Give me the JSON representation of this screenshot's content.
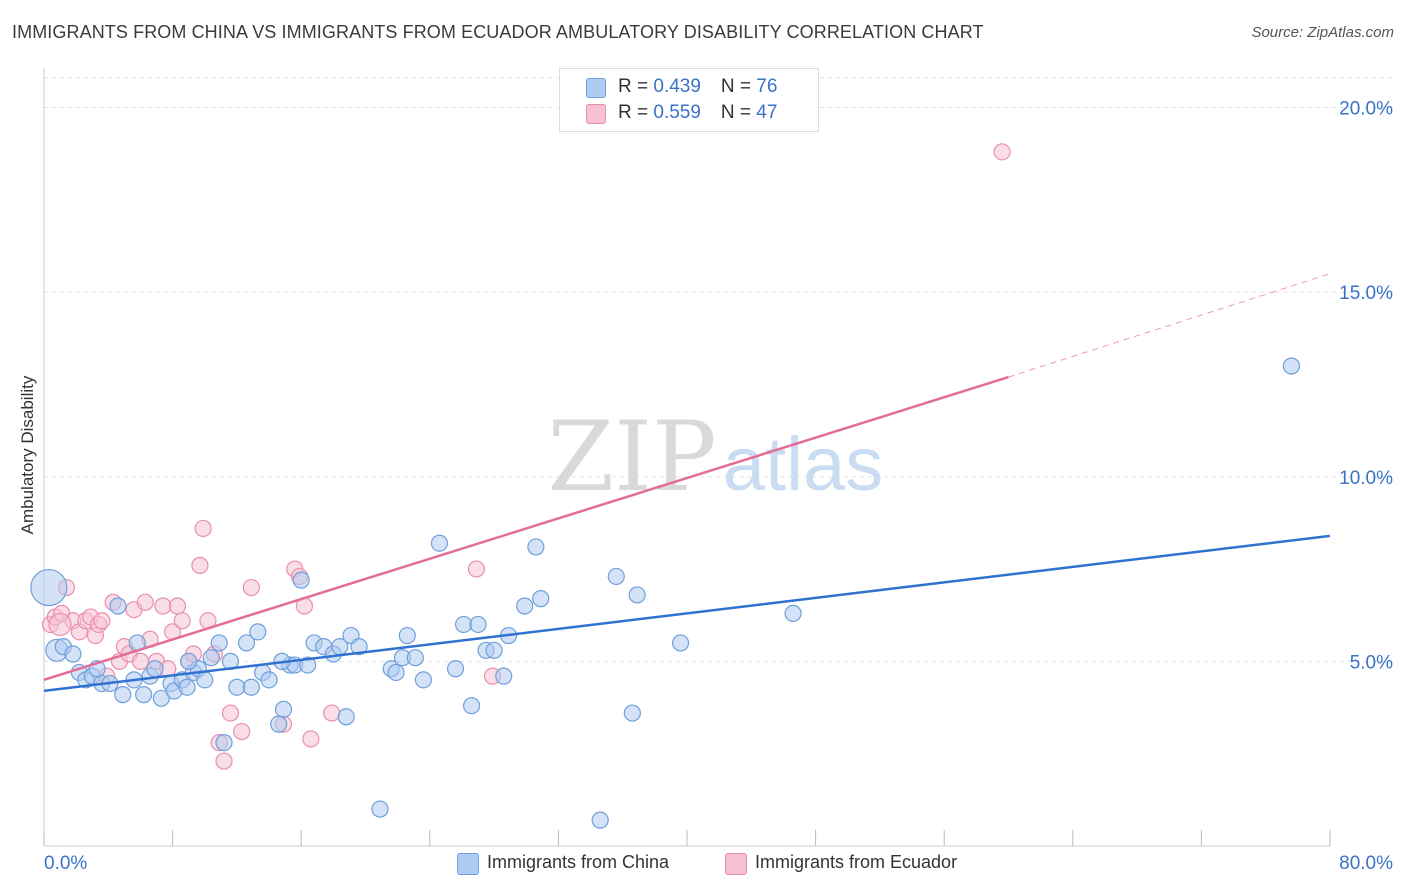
{
  "title": "IMMIGRANTS FROM CHINA VS IMMIGRANTS FROM ECUADOR AMBULATORY DISABILITY CORRELATION CHART",
  "source": "Source: ZipAtlas.com",
  "watermark": {
    "zip": "ZIP",
    "atlas": "atlas"
  },
  "legend_top": [
    {
      "r_label": "R = ",
      "r_value": "0.439",
      "n_label": "N = ",
      "n_value": "76"
    },
    {
      "r_label": "R = ",
      "r_value": "0.559",
      "n_label": "N = ",
      "n_value": "47"
    }
  ],
  "legend_bottom": [
    "Immigrants from China",
    "Immigrants from Ecuador"
  ],
  "colors": {
    "china_fill": "#aecbf1",
    "china_stroke": "#6f9fdb",
    "china_line": "#2f72cf",
    "ecuador_fill": "#f6c2d3",
    "ecuador_stroke": "#e98fae",
    "ecuador_line": "#e26d97",
    "grid": "#e2e2e2",
    "axis_text": "#3a72c8"
  },
  "chart_data": {
    "type": "scatter",
    "title": "IMMIGRANTS FROM CHINA VS IMMIGRANTS FROM ECUADOR AMBULATORY DISABILITY CORRELATION CHART",
    "xlabel": "",
    "ylabel": "Ambulatory Disability",
    "xlim": [
      0,
      80
    ],
    "ylim": [
      0,
      20.8
    ],
    "x_tick_labels": [
      "0.0%",
      "80.0%"
    ],
    "y_ticks": [
      5,
      10,
      15,
      20
    ],
    "y_tick_labels": [
      "5.0%",
      "10.0%",
      "15.0%",
      "20.0%"
    ],
    "grid": true,
    "series": [
      {
        "name": "Immigrants from China",
        "R": 0.439,
        "N": 76,
        "trend": {
          "x0": 0,
          "y0": 4.2,
          "x1": 80,
          "y1": 8.4
        },
        "points": [
          [
            0.3,
            7.0
          ],
          [
            0.8,
            5.3
          ],
          [
            1.2,
            5.4
          ],
          [
            1.8,
            5.2
          ],
          [
            2.2,
            4.7
          ],
          [
            2.6,
            4.5
          ],
          [
            3.0,
            4.6
          ],
          [
            3.3,
            4.8
          ],
          [
            3.6,
            4.4
          ],
          [
            4.1,
            4.4
          ],
          [
            4.6,
            6.5
          ],
          [
            4.9,
            4.1
          ],
          [
            5.6,
            4.5
          ],
          [
            5.8,
            5.5
          ],
          [
            6.2,
            4.1
          ],
          [
            6.6,
            4.6
          ],
          [
            6.9,
            4.8
          ],
          [
            7.3,
            4.0
          ],
          [
            7.9,
            4.4
          ],
          [
            8.1,
            4.2
          ],
          [
            8.6,
            4.5
          ],
          [
            8.9,
            4.3
          ],
          [
            9.3,
            4.7
          ],
          [
            9.6,
            4.8
          ],
          [
            10.0,
            4.5
          ],
          [
            10.4,
            5.1
          ],
          [
            10.9,
            5.5
          ],
          [
            11.2,
            2.8
          ],
          [
            11.6,
            5.0
          ],
          [
            12.0,
            4.3
          ],
          [
            12.6,
            5.5
          ],
          [
            12.9,
            4.3
          ],
          [
            13.3,
            5.8
          ],
          [
            13.6,
            4.7
          ],
          [
            14.0,
            4.5
          ],
          [
            14.6,
            3.3
          ],
          [
            14.9,
            3.7
          ],
          [
            15.3,
            4.9
          ],
          [
            15.6,
            4.9
          ],
          [
            16.0,
            7.2
          ],
          [
            16.4,
            4.9
          ],
          [
            16.8,
            5.5
          ],
          [
            17.4,
            5.4
          ],
          [
            18.0,
            5.2
          ],
          [
            18.4,
            5.4
          ],
          [
            18.8,
            3.5
          ],
          [
            19.1,
            5.7
          ],
          [
            19.6,
            5.4
          ],
          [
            20.9,
            1.0
          ],
          [
            21.6,
            4.8
          ],
          [
            21.9,
            4.7
          ],
          [
            22.3,
            5.1
          ],
          [
            22.6,
            5.7
          ],
          [
            23.1,
            5.1
          ],
          [
            23.6,
            4.5
          ],
          [
            24.6,
            8.2
          ],
          [
            25.6,
            4.8
          ],
          [
            26.1,
            6.0
          ],
          [
            26.6,
            3.8
          ],
          [
            27.0,
            6.0
          ],
          [
            27.5,
            5.3
          ],
          [
            28.0,
            5.3
          ],
          [
            28.6,
            4.6
          ],
          [
            28.9,
            5.7
          ],
          [
            29.9,
            6.5
          ],
          [
            30.6,
            8.1
          ],
          [
            30.9,
            6.7
          ],
          [
            34.6,
            0.7
          ],
          [
            35.6,
            7.3
          ],
          [
            36.6,
            3.6
          ],
          [
            36.9,
            6.8
          ],
          [
            39.6,
            5.5
          ],
          [
            46.6,
            6.3
          ],
          [
            77.6,
            13.0
          ],
          [
            9.0,
            5.0
          ],
          [
            14.8,
            5.0
          ]
        ]
      },
      {
        "name": "Immigrants from Ecuador",
        "R": 0.559,
        "N": 47,
        "trend": {
          "x0": 0,
          "y0": 4.5,
          "x1": 60,
          "y1": 12.7,
          "dashed_to": {
            "x": 80,
            "y": 15.5
          }
        },
        "points": [
          [
            0.4,
            6.0
          ],
          [
            0.7,
            6.2
          ],
          [
            1.1,
            6.3
          ],
          [
            1.4,
            7.0
          ],
          [
            1.8,
            6.1
          ],
          [
            2.2,
            5.8
          ],
          [
            2.6,
            6.1
          ],
          [
            2.9,
            6.2
          ],
          [
            3.2,
            5.7
          ],
          [
            3.4,
            6.0
          ],
          [
            3.6,
            6.1
          ],
          [
            3.9,
            4.6
          ],
          [
            4.3,
            6.6
          ],
          [
            4.7,
            5.0
          ],
          [
            5.0,
            5.4
          ],
          [
            5.3,
            5.2
          ],
          [
            5.6,
            6.4
          ],
          [
            6.0,
            5.0
          ],
          [
            6.3,
            6.6
          ],
          [
            6.6,
            5.6
          ],
          [
            7.0,
            5.0
          ],
          [
            7.4,
            6.5
          ],
          [
            7.7,
            4.8
          ],
          [
            8.0,
            5.8
          ],
          [
            8.3,
            6.5
          ],
          [
            8.6,
            6.1
          ],
          [
            9.0,
            5.0
          ],
          [
            9.3,
            5.2
          ],
          [
            9.7,
            7.6
          ],
          [
            9.9,
            8.6
          ],
          [
            10.2,
            6.1
          ],
          [
            10.6,
            5.2
          ],
          [
            10.9,
            2.8
          ],
          [
            11.2,
            2.3
          ],
          [
            11.6,
            3.6
          ],
          [
            12.3,
            3.1
          ],
          [
            12.9,
            7.0
          ],
          [
            14.9,
            3.3
          ],
          [
            15.6,
            7.5
          ],
          [
            15.9,
            7.3
          ],
          [
            16.2,
            6.5
          ],
          [
            16.6,
            2.9
          ],
          [
            17.9,
            3.6
          ],
          [
            26.9,
            7.5
          ],
          [
            27.9,
            4.6
          ],
          [
            59.6,
            18.8
          ],
          [
            1.0,
            6.0
          ]
        ]
      }
    ]
  }
}
